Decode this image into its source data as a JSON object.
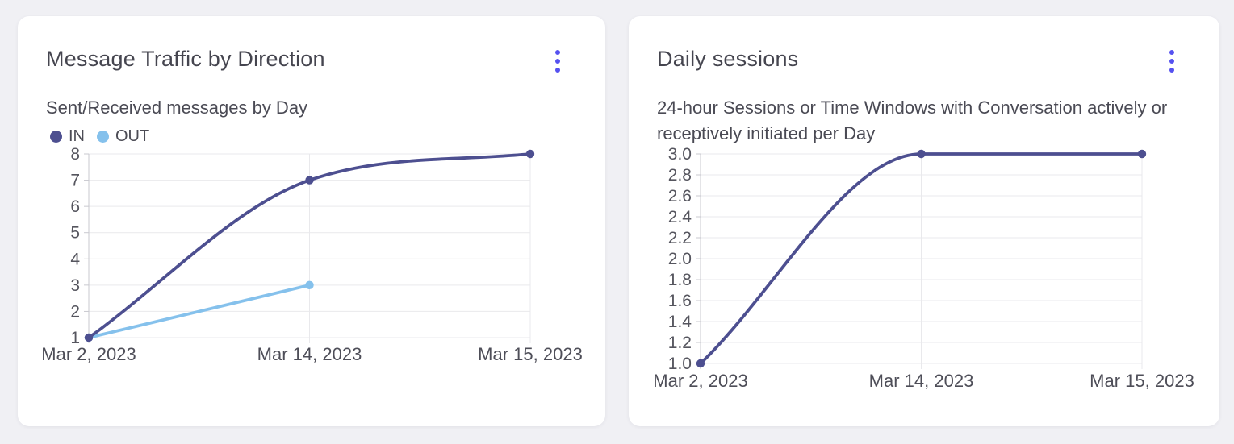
{
  "page": {
    "background_color": "#f0f0f4",
    "card_color": "#ffffff",
    "accent_color": "#5551f0"
  },
  "cards": [
    {
      "title": "Message Traffic by Direction",
      "subtitle": "Sent/Received messages by Day"
    },
    {
      "title": "Daily sessions",
      "subtitle": "24-hour Sessions or Time Windows with Conversation actively or receptively initiated per Day"
    }
  ],
  "chart_data": [
    {
      "type": "line",
      "title": "Message Traffic by Direction",
      "subtitle": "Sent/Received messages by Day",
      "x_axis_type": "category",
      "categories": [
        "Mar 2, 2023",
        "Mar 14, 2023",
        "Mar 15, 2023"
      ],
      "series": [
        {
          "name": "IN",
          "color": "#4d4f90",
          "values": [
            1,
            7,
            8
          ]
        },
        {
          "name": "OUT",
          "color": "#85c1ec",
          "values": [
            1,
            3,
            null
          ]
        }
      ],
      "ylim": [
        1,
        8
      ],
      "y_ticks": [
        "1",
        "2",
        "3",
        "4",
        "5",
        "6",
        "7",
        "8"
      ],
      "grid": true,
      "curve": "monotone",
      "legend_position": "top-left"
    },
    {
      "type": "line",
      "title": "Daily sessions",
      "subtitle": "24-hour Sessions or Time Windows with Conversation actively or receptively initiated per Day",
      "x_axis_type": "category",
      "categories": [
        "Mar 2, 2023",
        "Mar 14, 2023",
        "Mar 15, 2023"
      ],
      "series": [
        {
          "name": "Daily sessions",
          "color": "#4d4f90",
          "values": [
            1.0,
            3.0,
            3.0
          ]
        }
      ],
      "ylim": [
        1.0,
        3.0
      ],
      "y_ticks": [
        "1.0",
        "1.2",
        "1.4",
        "1.6",
        "1.8",
        "2.0",
        "2.2",
        "2.4",
        "2.6",
        "2.8",
        "3.0"
      ],
      "grid": true,
      "curve": "monotone",
      "legend_position": "none"
    }
  ]
}
